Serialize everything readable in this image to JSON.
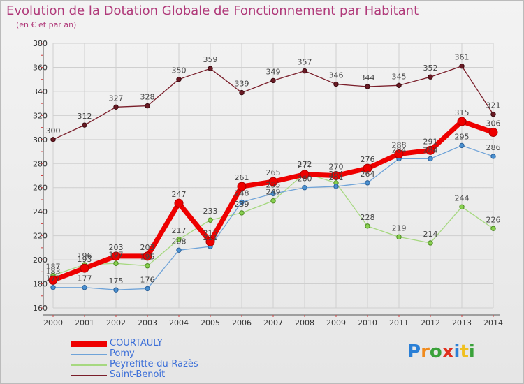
{
  "chart_data": {
    "type": "line",
    "title": "Evolution de la Dotation Globale de Fonctionnement par Habitant",
    "subtitle": "(en € et par an)",
    "xlabel": "",
    "ylabel": "",
    "ylim": [
      160,
      380
    ],
    "yticks": [
      160,
      180,
      200,
      220,
      240,
      260,
      280,
      300,
      320,
      340,
      360,
      380
    ],
    "grid": true,
    "legend_position": "bottom-left",
    "x": [
      2000,
      2001,
      2002,
      2003,
      2004,
      2005,
      2006,
      2007,
      2008,
      2009,
      2010,
      2011,
      2012,
      2013,
      2014
    ],
    "series": [
      {
        "name": "COURTAULY",
        "color": "#ee0000",
        "values": [
          183,
          193,
          203,
          203,
          247,
          215,
          261,
          265,
          271,
          270,
          276,
          288,
          291,
          315,
          306
        ]
      },
      {
        "name": "Pomy",
        "color": "#4a90d0",
        "values": [
          177,
          177,
          175,
          176,
          208,
          211,
          248,
          255,
          260,
          261,
          264,
          284,
          284,
          295,
          286
        ]
      },
      {
        "name": "Peyrefitte-du-Razès",
        "color": "#88d050",
        "values": [
          187,
          196,
          197,
          195,
          217,
          233,
          239,
          249,
          272,
          264,
          228,
          219,
          214,
          244,
          226
        ]
      },
      {
        "name": "Saint-Benoît",
        "color": "#7a1e2a",
        "values": [
          300,
          312,
          327,
          328,
          350,
          359,
          339,
          349,
          357,
          346,
          344,
          345,
          352,
          361,
          321
        ]
      }
    ]
  },
  "logo": {
    "text": "Proxiti",
    "colors": [
      "#2a7fd6",
      "#f08a1c",
      "#3aa23a",
      "#e0301e",
      "#2a7fd6",
      "#f0c020",
      "#3aa23a"
    ]
  }
}
